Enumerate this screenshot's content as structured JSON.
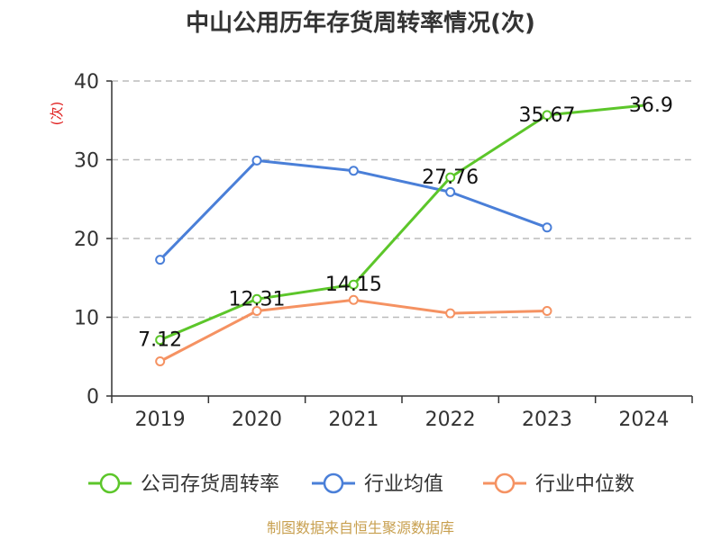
{
  "chart_data": {
    "type": "line",
    "title": "中山公用历年存货周转率情况(次)",
    "ylabel": "(次)",
    "ylim": [
      0,
      40
    ],
    "yticks": [
      0,
      10,
      20,
      30,
      40
    ],
    "categories": [
      "2019",
      "2020",
      "2021",
      "2022",
      "2023",
      "2024"
    ],
    "grid": true,
    "legend_position": "bottom",
    "series": [
      {
        "name": "公司存货周转率",
        "color": "#5cc62a",
        "values": [
          7.12,
          12.31,
          14.15,
          27.76,
          35.67,
          36.9
        ],
        "labels": [
          "7.12",
          "12.31",
          "14.15",
          "27.76",
          "35.67",
          "36.9"
        ],
        "marker_until": 4
      },
      {
        "name": "行业均值",
        "color": "#4a7fd8",
        "values": [
          17.3,
          29.9,
          28.6,
          25.9,
          21.4,
          null
        ],
        "marker_until": 4
      },
      {
        "name": "行业中位数",
        "color": "#f59262",
        "values": [
          4.4,
          10.8,
          12.2,
          10.5,
          10.8,
          null
        ],
        "marker_until": 4
      }
    ],
    "source": "制图数据来自恒生聚源数据库"
  }
}
